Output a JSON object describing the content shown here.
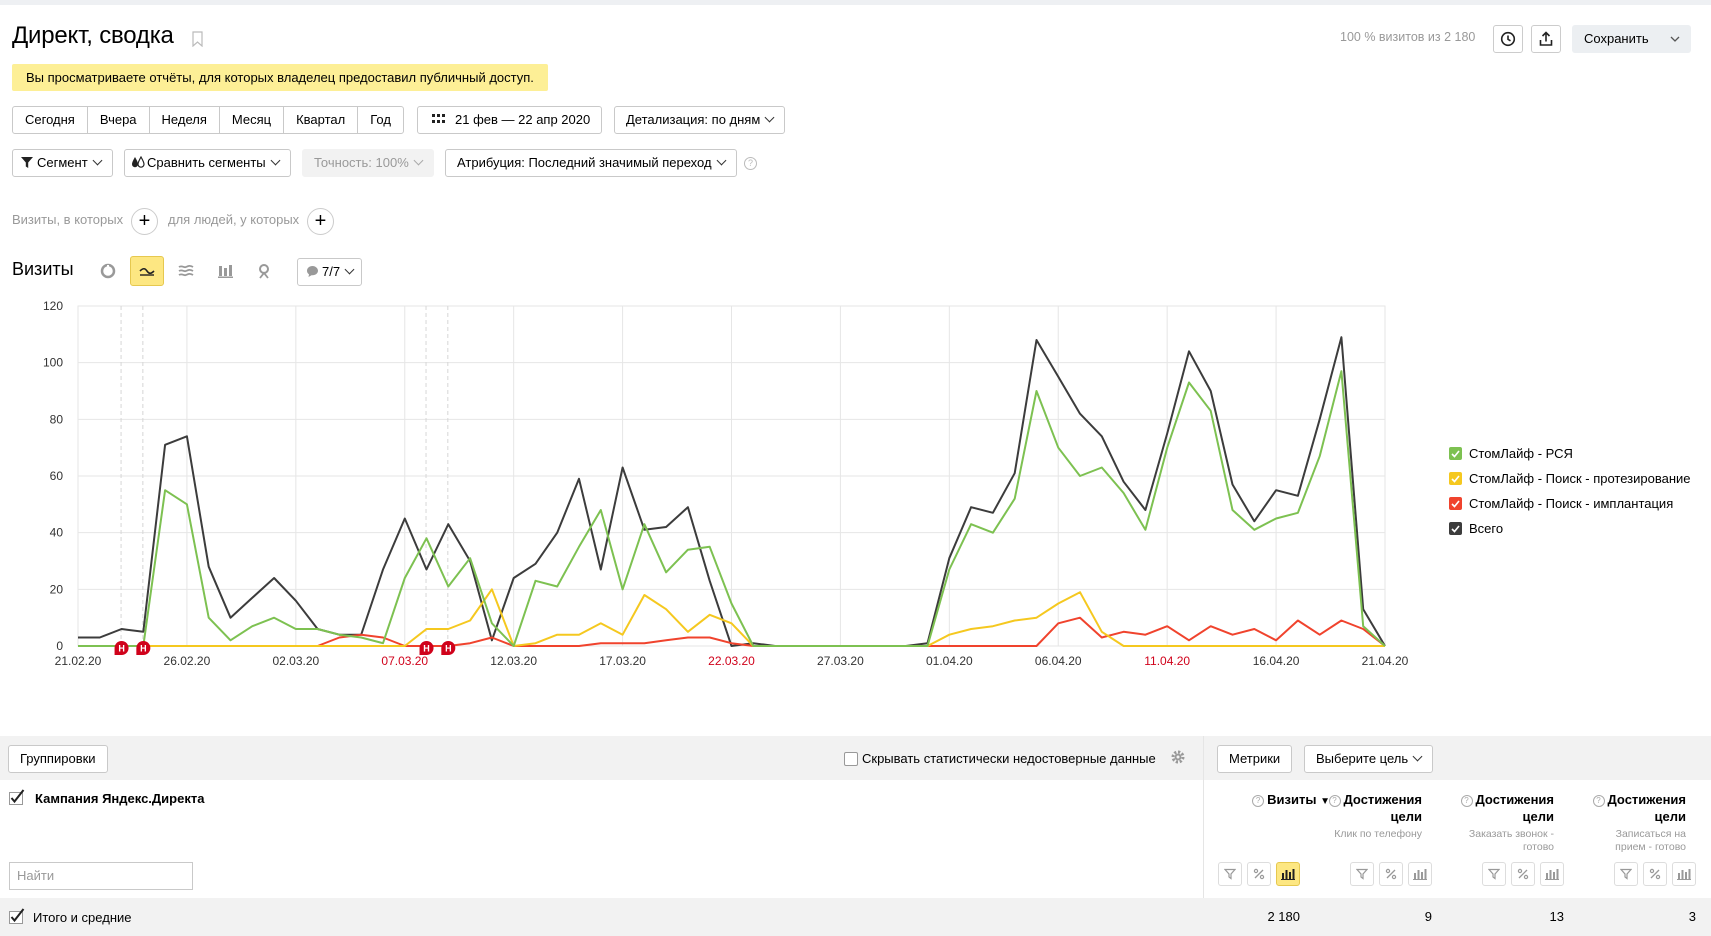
{
  "header": {
    "title": "Директ, сводка",
    "notice": "Вы просматриваете отчёты, для которых владелец предоставил публичный доступ.",
    "share_info": "100 % визитов из 2 180",
    "save_label": "Сохранить"
  },
  "period": {
    "tabs": [
      "Сегодня",
      "Вчера",
      "Неделя",
      "Месяц",
      "Квартал",
      "Год"
    ],
    "date_range": "21 фев — 22 апр 2020",
    "detail": "Детализация: по дням"
  },
  "toolbar": {
    "segment": "Сегмент",
    "compare": "Сравнить сегменты",
    "accuracy": "Точность: 100%",
    "attribution": "Атрибуция: Последний значимый переход"
  },
  "filters": {
    "visits_in": "Визиты, в которых",
    "people_with": "для людей, у которых"
  },
  "chart_section": {
    "title": "Визиты",
    "series_count": "7/7"
  },
  "colors": {
    "rsya": "#7dc151",
    "protez": "#f5c81f",
    "implant": "#f0432d",
    "total": "#3c3c3c"
  },
  "chart_data": {
    "type": "line",
    "ylim": [
      0,
      120
    ],
    "yticks": [
      0,
      20,
      40,
      60,
      80,
      100,
      120
    ],
    "xlabels": [
      {
        "label": "21.02.20",
        "day": 0,
        "holiday": false
      },
      {
        "label": "26.02.20",
        "day": 5,
        "holiday": false
      },
      {
        "label": "02.03.20",
        "day": 10,
        "holiday": false
      },
      {
        "label": "07.03.20",
        "day": 15,
        "holiday": true
      },
      {
        "label": "12.03.20",
        "day": 20,
        "holiday": false
      },
      {
        "label": "17.03.20",
        "day": 25,
        "holiday": false
      },
      {
        "label": "22.03.20",
        "day": 30,
        "holiday": true
      },
      {
        "label": "27.03.20",
        "day": 35,
        "holiday": false
      },
      {
        "label": "01.04.20",
        "day": 40,
        "holiday": false
      },
      {
        "label": "06.04.20",
        "day": 45,
        "holiday": false
      },
      {
        "label": "11.04.20",
        "day": 50,
        "holiday": true
      },
      {
        "label": "16.04.20",
        "day": 55,
        "holiday": false
      },
      {
        "label": "21.04.20",
        "day": 60,
        "holiday": false
      }
    ],
    "annotations": [
      {
        "day": 2,
        "label": "Н"
      },
      {
        "day": 3,
        "label": "Н"
      },
      {
        "day": 16,
        "label": "Н"
      },
      {
        "day": 17,
        "label": "Н"
      }
    ],
    "series": [
      {
        "name": "СтомЛайф - РСЯ",
        "color": "#7dc151",
        "values": [
          0,
          0,
          0,
          0,
          55,
          50,
          10,
          2,
          7,
          10,
          6,
          6,
          4,
          3,
          1,
          24,
          38,
          21,
          31,
          8,
          0,
          23,
          21,
          35,
          48,
          20,
          43,
          26,
          34,
          35,
          15,
          0,
          0,
          0,
          0,
          0,
          0,
          0,
          0,
          0,
          27,
          43,
          40,
          52,
          90,
          70,
          60,
          63,
          54,
          41,
          70,
          93,
          83,
          48,
          41,
          45,
          47,
          67,
          97,
          7,
          0
        ]
      },
      {
        "name": "СтомЛайф - Поиск - протезирование",
        "color": "#f5c81f",
        "values": [
          0,
          0,
          0,
          0,
          0,
          0,
          0,
          0,
          0,
          0,
          0,
          0,
          0,
          0,
          0,
          0,
          6,
          6,
          9,
          20,
          0,
          1,
          4,
          4,
          8,
          4,
          18,
          13,
          5,
          11,
          8,
          0,
          0,
          0,
          0,
          0,
          0,
          0,
          0,
          0,
          4,
          6,
          7,
          9,
          10,
          15,
          19,
          5,
          0,
          0,
          0,
          0,
          0,
          0,
          0,
          0,
          0,
          0,
          0,
          0,
          0
        ]
      },
      {
        "name": "СтомЛайф - Поиск - имплантация",
        "color": "#f0432d",
        "values": [
          0,
          0,
          0,
          0,
          0,
          0,
          0,
          0,
          0,
          0,
          0,
          0,
          3,
          4,
          3,
          0,
          0,
          0,
          1,
          3,
          0,
          0,
          0,
          0,
          1,
          1,
          1,
          2,
          3,
          3,
          1,
          0,
          0,
          0,
          0,
          0,
          0,
          0,
          0,
          0,
          0,
          0,
          0,
          0,
          0,
          8,
          10,
          3,
          5,
          4,
          7,
          2,
          7,
          4,
          6,
          2,
          9,
          4,
          9,
          6,
          0
        ]
      },
      {
        "name": "Всего",
        "color": "#3c3c3c",
        "values": [
          3,
          3,
          6,
          5,
          71,
          74,
          28,
          10,
          17,
          24,
          16,
          6,
          4,
          4,
          27,
          45,
          27,
          43,
          30,
          2,
          24,
          29,
          40,
          59,
          27,
          63,
          41,
          42,
          49,
          23,
          0,
          1,
          0,
          0,
          0,
          0,
          0,
          0,
          0,
          1,
          31,
          49,
          47,
          61,
          108,
          95,
          82,
          74,
          58,
          48,
          75,
          104,
          90,
          57,
          44,
          55,
          53,
          80,
          109,
          13,
          0
        ]
      }
    ]
  },
  "table": {
    "groupings": "Группировки",
    "hide_unreliable": "Скрывать статистически недостоверные данные",
    "metrics": "Метрики",
    "select_goal": "Выберите цель",
    "dimension": "Кампания Яндекс.Директа",
    "search_placeholder": "Найти",
    "columns": [
      {
        "title": "Визиты",
        "sub": "",
        "sort": "▼"
      },
      {
        "title": "Достижения цели",
        "sub": "Клик по телефону"
      },
      {
        "title": "Достижения цели",
        "sub": "Заказать звонок - готово"
      },
      {
        "title": "Достижения цели",
        "sub": "Записаться на прием - готово"
      }
    ],
    "total_label": "Итого и средние",
    "totals": [
      "2 180",
      "9",
      "13",
      "3"
    ]
  }
}
